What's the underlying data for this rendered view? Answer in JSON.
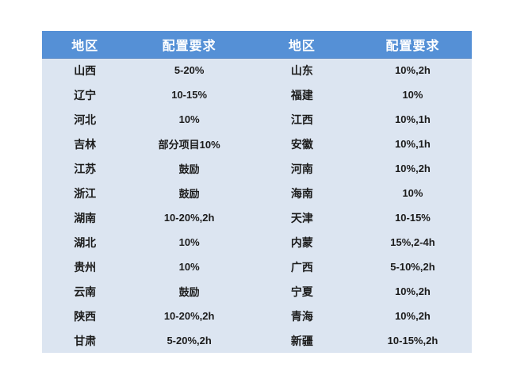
{
  "colors": {
    "header_bg": "#5590D6",
    "header_border": "#4E82C4",
    "body_bg": "#DCE5F1",
    "header_text": "#FFFFFF",
    "body_text": "#1C1C1C",
    "page_bg": "#FFFFFF"
  },
  "chart_data": {
    "type": "table",
    "title": "",
    "headers": [
      "地区",
      "配置要求",
      "地区",
      "配置要求"
    ],
    "rows": [
      [
        "山西",
        "5-20%",
        "山东",
        "10%,2h"
      ],
      [
        "辽宁",
        "10-15%",
        "福建",
        "10%"
      ],
      [
        "河北",
        "10%",
        "江西",
        "10%,1h"
      ],
      [
        "吉林",
        "部分项目10%",
        "安徽",
        "10%,1h"
      ],
      [
        "江苏",
        "鼓励",
        "河南",
        "10%,2h"
      ],
      [
        "浙江",
        "鼓励",
        "海南",
        "10%"
      ],
      [
        "湖南",
        "10-20%,2h",
        "天津",
        "10-15%"
      ],
      [
        "湖北",
        "10%",
        "内蒙",
        "15%,2-4h"
      ],
      [
        "贵州",
        "10%",
        "广西",
        "5-10%,2h"
      ],
      [
        "云南",
        "鼓励",
        "宁夏",
        "10%,2h"
      ],
      [
        "陕西",
        "10-20%,2h",
        "青海",
        "10%,2h"
      ],
      [
        "甘肃",
        "5-20%,2h",
        "新疆",
        "10-15%,2h"
      ]
    ]
  }
}
